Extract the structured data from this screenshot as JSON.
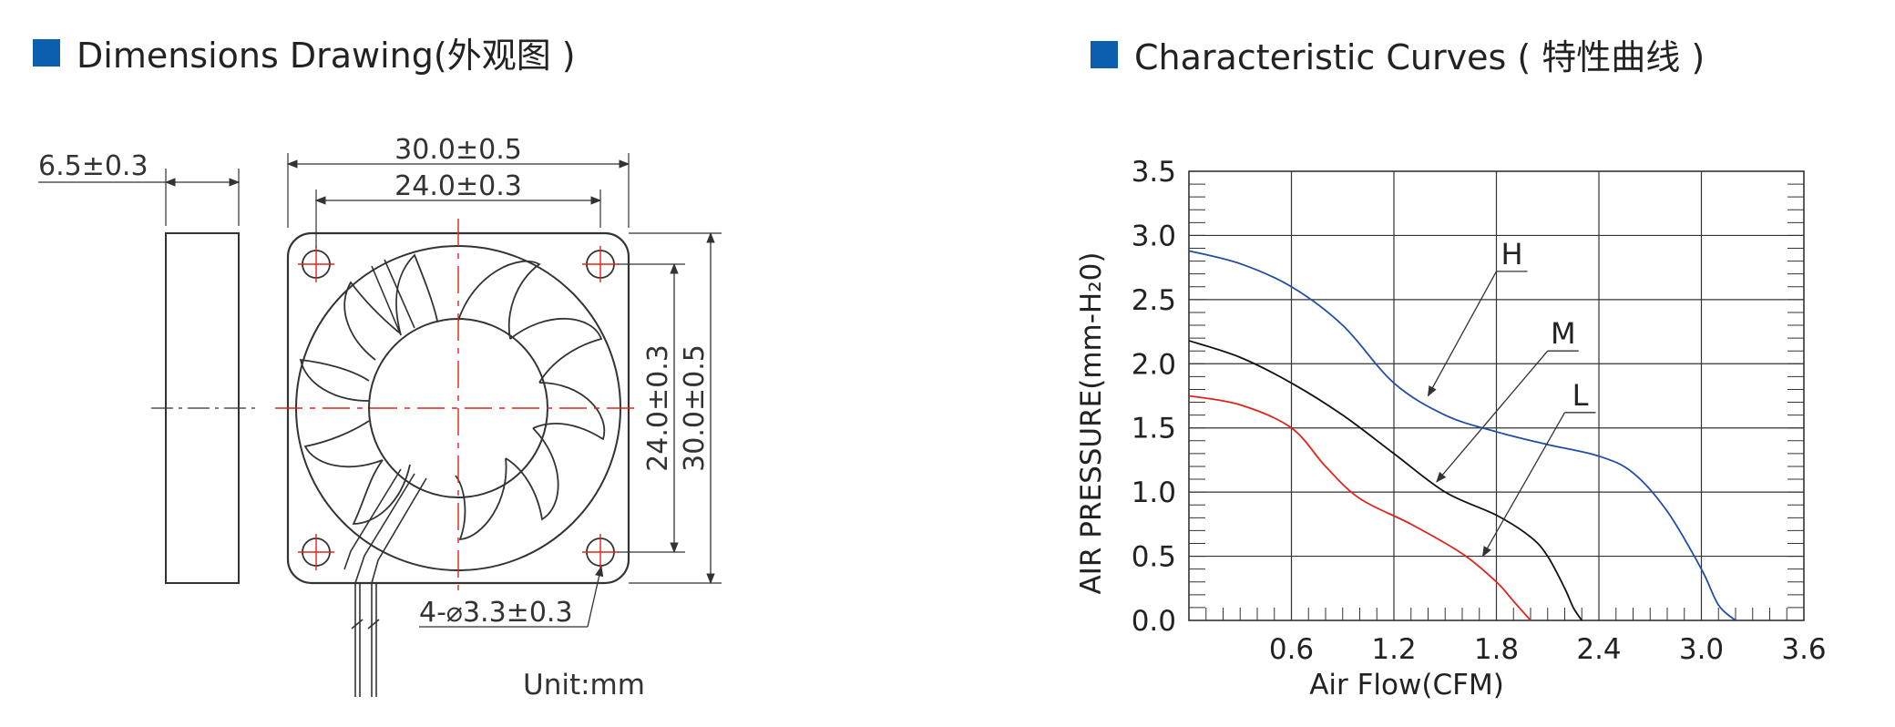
{
  "left_header": {
    "title": "Dimensions Drawing(外观图 )",
    "marker_color": "#0b5fae"
  },
  "right_header": {
    "title": "Characteristic Curves ( 特性曲线 )",
    "marker_color": "#0b5fae"
  },
  "drawing": {
    "thickness": "6.5±0.3",
    "overall_width": "30.0±0.5",
    "hole_spacing_width": "24.0±0.3",
    "hole_spacing_height": "24.0±0.3",
    "overall_height": "30.0±0.5",
    "holes": "4-⌀3.3±0.3",
    "unit": "Unit:mm"
  },
  "chart_data": {
    "type": "line",
    "xlabel": "Air Flow(CFM)",
    "ylabel": "AIR PRESSURE(mm-H₂0)",
    "xlim": [
      0,
      3.6
    ],
    "ylim": [
      0,
      3.5
    ],
    "xticks": [
      "0.6",
      "1.2",
      "1.8",
      "2.4",
      "3.0",
      "3.6"
    ],
    "yticks": [
      "0.0",
      "0.5",
      "1.0",
      "1.5",
      "2.0",
      "2.5",
      "3.0",
      "3.5"
    ],
    "grid": true,
    "series": [
      {
        "name": "H",
        "color": "#1f4fa3",
        "x": [
          0,
          0.3,
          0.6,
          0.9,
          1.2,
          1.5,
          1.8,
          2.1,
          2.4,
          2.6,
          2.8,
          3.0,
          3.1,
          3.2
        ],
        "y": [
          2.88,
          2.78,
          2.6,
          2.3,
          1.85,
          1.6,
          1.47,
          1.37,
          1.28,
          1.15,
          0.85,
          0.4,
          0.12,
          0
        ]
      },
      {
        "name": "M",
        "color": "#111111",
        "x": [
          0,
          0.3,
          0.6,
          0.9,
          1.2,
          1.5,
          1.8,
          2.0,
          2.1,
          2.2,
          2.25,
          2.3
        ],
        "y": [
          2.18,
          2.05,
          1.85,
          1.6,
          1.3,
          1.0,
          0.82,
          0.65,
          0.5,
          0.25,
          0.1,
          0
        ]
      },
      {
        "name": "L",
        "color": "#e0231a",
        "x": [
          0,
          0.3,
          0.6,
          0.8,
          1.0,
          1.3,
          1.6,
          1.8,
          1.9,
          2.0
        ],
        "y": [
          1.75,
          1.68,
          1.5,
          1.2,
          0.95,
          0.75,
          0.52,
          0.3,
          0.15,
          0
        ]
      }
    ],
    "annotations": [
      {
        "text": "H",
        "points_to": [
          1.4,
          1.75
        ]
      },
      {
        "text": "M",
        "points_to": [
          1.45,
          1.08
        ]
      },
      {
        "text": "L",
        "points_to": [
          1.72,
          0.5
        ]
      }
    ]
  }
}
